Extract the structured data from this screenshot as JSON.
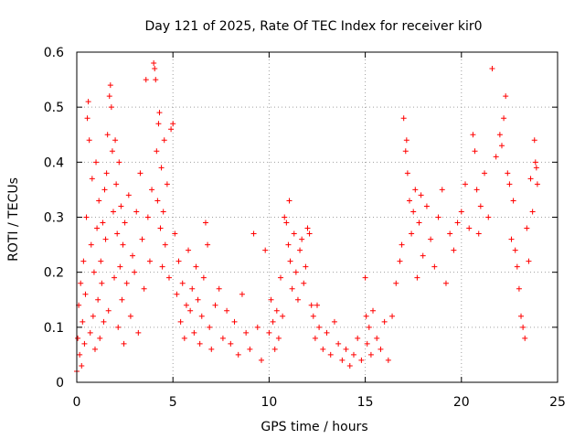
{
  "chart_data": {
    "type": "scatter",
    "title": "Day 121 of 2025, Rate Of TEC Index for receiver kir0",
    "xlabel": "GPS time / hours",
    "ylabel": "ROTI / TECUs",
    "xlim": [
      0,
      25
    ],
    "ylim": [
      0,
      0.6
    ],
    "xticks": [
      0,
      5,
      10,
      15,
      20,
      25
    ],
    "xtick_labels": [
      "0",
      "5",
      "10",
      "15",
      "20",
      "25"
    ],
    "yticks": [
      0,
      0.1,
      0.2,
      0.3,
      0.4,
      0.5,
      0.6
    ],
    "ytick_labels": [
      "0",
      "0.1",
      "0.2",
      "0.3",
      "0.4",
      "0.5",
      "0.6"
    ],
    "grid": true,
    "marker": "+",
    "color": "#ff0000",
    "series": [
      {
        "points": [
          [
            0.0,
            0.02
          ],
          [
            0.05,
            0.08
          ],
          [
            0.1,
            0.14
          ],
          [
            0.15,
            0.05
          ],
          [
            0.2,
            0.18
          ],
          [
            0.25,
            0.03
          ],
          [
            0.3,
            0.11
          ],
          [
            0.35,
            0.22
          ],
          [
            0.4,
            0.07
          ],
          [
            0.45,
            0.16
          ],
          [
            0.5,
            0.3
          ],
          [
            0.55,
            0.48
          ],
          [
            0.6,
            0.51
          ],
          [
            0.65,
            0.44
          ],
          [
            0.7,
            0.09
          ],
          [
            0.75,
            0.25
          ],
          [
            0.8,
            0.37
          ],
          [
            0.85,
            0.12
          ],
          [
            0.9,
            0.2
          ],
          [
            0.95,
            0.06
          ],
          [
            1.0,
            0.4
          ],
          [
            1.05,
            0.28
          ],
          [
            1.1,
            0.15
          ],
          [
            1.15,
            0.33
          ],
          [
            1.2,
            0.08
          ],
          [
            1.25,
            0.22
          ],
          [
            1.3,
            0.18
          ],
          [
            1.35,
            0.29
          ],
          [
            1.4,
            0.11
          ],
          [
            1.45,
            0.35
          ],
          [
            1.5,
            0.26
          ],
          [
            1.55,
            0.38
          ],
          [
            1.6,
            0.45
          ],
          [
            1.65,
            0.13
          ],
          [
            1.7,
            0.52
          ],
          [
            1.75,
            0.54
          ],
          [
            1.8,
            0.5
          ],
          [
            1.85,
            0.42
          ],
          [
            1.9,
            0.31
          ],
          [
            1.95,
            0.19
          ],
          [
            2.0,
            0.44
          ],
          [
            2.05,
            0.36
          ],
          [
            2.1,
            0.27
          ],
          [
            2.15,
            0.1
          ],
          [
            2.2,
            0.4
          ],
          [
            2.25,
            0.21
          ],
          [
            2.3,
            0.32
          ],
          [
            2.35,
            0.15
          ],
          [
            2.4,
            0.25
          ],
          [
            2.45,
            0.07
          ],
          [
            2.5,
            0.29
          ],
          [
            2.6,
            0.18
          ],
          [
            2.7,
            0.34
          ],
          [
            2.8,
            0.12
          ],
          [
            2.9,
            0.23
          ],
          [
            3.0,
            0.2
          ],
          [
            3.1,
            0.31
          ],
          [
            3.2,
            0.09
          ],
          [
            3.3,
            0.38
          ],
          [
            3.4,
            0.26
          ],
          [
            3.5,
            0.17
          ],
          [
            3.6,
            0.55
          ],
          [
            3.7,
            0.3
          ],
          [
            3.8,
            0.22
          ],
          [
            3.9,
            0.35
          ],
          [
            4.0,
            0.58
          ],
          [
            4.05,
            0.57
          ],
          [
            4.1,
            0.55
          ],
          [
            4.15,
            0.42
          ],
          [
            4.2,
            0.33
          ],
          [
            4.25,
            0.47
          ],
          [
            4.3,
            0.49
          ],
          [
            4.35,
            0.28
          ],
          [
            4.4,
            0.39
          ],
          [
            4.45,
            0.21
          ],
          [
            4.5,
            0.31
          ],
          [
            4.55,
            0.44
          ],
          [
            4.6,
            0.25
          ],
          [
            4.7,
            0.36
          ],
          [
            4.8,
            0.19
          ],
          [
            4.9,
            0.46
          ],
          [
            5.0,
            0.47
          ],
          [
            5.1,
            0.27
          ],
          [
            5.2,
            0.16
          ],
          [
            5.3,
            0.22
          ],
          [
            5.4,
            0.11
          ],
          [
            5.5,
            0.18
          ],
          [
            5.6,
            0.08
          ],
          [
            5.7,
            0.14
          ],
          [
            5.8,
            0.24
          ],
          [
            5.9,
            0.13
          ],
          [
            6.0,
            0.17
          ],
          [
            6.1,
            0.09
          ],
          [
            6.2,
            0.21
          ],
          [
            6.3,
            0.15
          ],
          [
            6.4,
            0.07
          ],
          [
            6.5,
            0.12
          ],
          [
            6.6,
            0.19
          ],
          [
            6.7,
            0.29
          ],
          [
            6.8,
            0.25
          ],
          [
            6.9,
            0.1
          ],
          [
            7.0,
            0.06
          ],
          [
            7.2,
            0.14
          ],
          [
            7.4,
            0.17
          ],
          [
            7.6,
            0.08
          ],
          [
            7.8,
            0.13
          ],
          [
            8.0,
            0.07
          ],
          [
            8.2,
            0.11
          ],
          [
            8.4,
            0.05
          ],
          [
            8.6,
            0.16
          ],
          [
            8.8,
            0.09
          ],
          [
            9.0,
            0.06
          ],
          [
            9.2,
            0.27
          ],
          [
            9.4,
            0.1
          ],
          [
            9.6,
            0.04
          ],
          [
            9.8,
            0.24
          ],
          [
            10.0,
            0.09
          ],
          [
            10.1,
            0.15
          ],
          [
            10.2,
            0.11
          ],
          [
            10.3,
            0.06
          ],
          [
            10.4,
            0.13
          ],
          [
            10.5,
            0.08
          ],
          [
            10.6,
            0.19
          ],
          [
            10.7,
            0.12
          ],
          [
            10.8,
            0.3
          ],
          [
            10.9,
            0.29
          ],
          [
            11.0,
            0.25
          ],
          [
            11.05,
            0.33
          ],
          [
            11.1,
            0.22
          ],
          [
            11.2,
            0.17
          ],
          [
            11.3,
            0.27
          ],
          [
            11.4,
            0.2
          ],
          [
            11.5,
            0.15
          ],
          [
            11.6,
            0.24
          ],
          [
            11.7,
            0.26
          ],
          [
            11.8,
            0.18
          ],
          [
            11.9,
            0.21
          ],
          [
            12.0,
            0.28
          ],
          [
            12.1,
            0.27
          ],
          [
            12.2,
            0.14
          ],
          [
            12.3,
            0.12
          ],
          [
            12.4,
            0.08
          ],
          [
            12.5,
            0.14
          ],
          [
            12.6,
            0.1
          ],
          [
            12.8,
            0.06
          ],
          [
            13.0,
            0.09
          ],
          [
            13.2,
            0.05
          ],
          [
            13.4,
            0.11
          ],
          [
            13.6,
            0.07
          ],
          [
            13.8,
            0.04
          ],
          [
            14.0,
            0.06
          ],
          [
            14.2,
            0.03
          ],
          [
            14.4,
            0.05
          ],
          [
            14.6,
            0.08
          ],
          [
            14.8,
            0.04
          ],
          [
            15.0,
            0.19
          ],
          [
            15.05,
            0.12
          ],
          [
            15.1,
            0.07
          ],
          [
            15.2,
            0.1
          ],
          [
            15.3,
            0.05
          ],
          [
            15.4,
            0.13
          ],
          [
            15.6,
            0.08
          ],
          [
            15.8,
            0.06
          ],
          [
            16.0,
            0.11
          ],
          [
            16.2,
            0.04
          ],
          [
            16.4,
            0.12
          ],
          [
            16.6,
            0.18
          ],
          [
            16.8,
            0.22
          ],
          [
            16.9,
            0.25
          ],
          [
            17.0,
            0.48
          ],
          [
            17.1,
            0.42
          ],
          [
            17.15,
            0.44
          ],
          [
            17.2,
            0.38
          ],
          [
            17.3,
            0.33
          ],
          [
            17.4,
            0.27
          ],
          [
            17.5,
            0.31
          ],
          [
            17.6,
            0.35
          ],
          [
            17.7,
            0.19
          ],
          [
            17.8,
            0.29
          ],
          [
            17.9,
            0.34
          ],
          [
            18.0,
            0.23
          ],
          [
            18.2,
            0.32
          ],
          [
            18.4,
            0.26
          ],
          [
            18.6,
            0.21
          ],
          [
            18.8,
            0.3
          ],
          [
            19.0,
            0.35
          ],
          [
            19.2,
            0.18
          ],
          [
            19.4,
            0.27
          ],
          [
            19.6,
            0.24
          ],
          [
            19.8,
            0.29
          ],
          [
            20.0,
            0.31
          ],
          [
            20.2,
            0.36
          ],
          [
            20.4,
            0.28
          ],
          [
            20.6,
            0.45
          ],
          [
            20.7,
            0.42
          ],
          [
            20.8,
            0.35
          ],
          [
            20.9,
            0.27
          ],
          [
            21.0,
            0.32
          ],
          [
            21.2,
            0.38
          ],
          [
            21.4,
            0.3
          ],
          [
            21.6,
            0.57
          ],
          [
            21.8,
            0.41
          ],
          [
            22.0,
            0.45
          ],
          [
            22.1,
            0.43
          ],
          [
            22.2,
            0.48
          ],
          [
            22.3,
            0.52
          ],
          [
            22.4,
            0.38
          ],
          [
            22.5,
            0.36
          ],
          [
            22.6,
            0.26
          ],
          [
            22.7,
            0.33
          ],
          [
            22.8,
            0.24
          ],
          [
            22.9,
            0.21
          ],
          [
            23.0,
            0.17
          ],
          [
            23.1,
            0.12
          ],
          [
            23.2,
            0.1
          ],
          [
            23.3,
            0.08
          ],
          [
            23.4,
            0.28
          ],
          [
            23.5,
            0.22
          ],
          [
            23.6,
            0.37
          ],
          [
            23.7,
            0.31
          ],
          [
            23.8,
            0.44
          ],
          [
            23.85,
            0.4
          ],
          [
            23.9,
            0.39
          ],
          [
            23.95,
            0.36
          ]
        ]
      }
    ]
  }
}
